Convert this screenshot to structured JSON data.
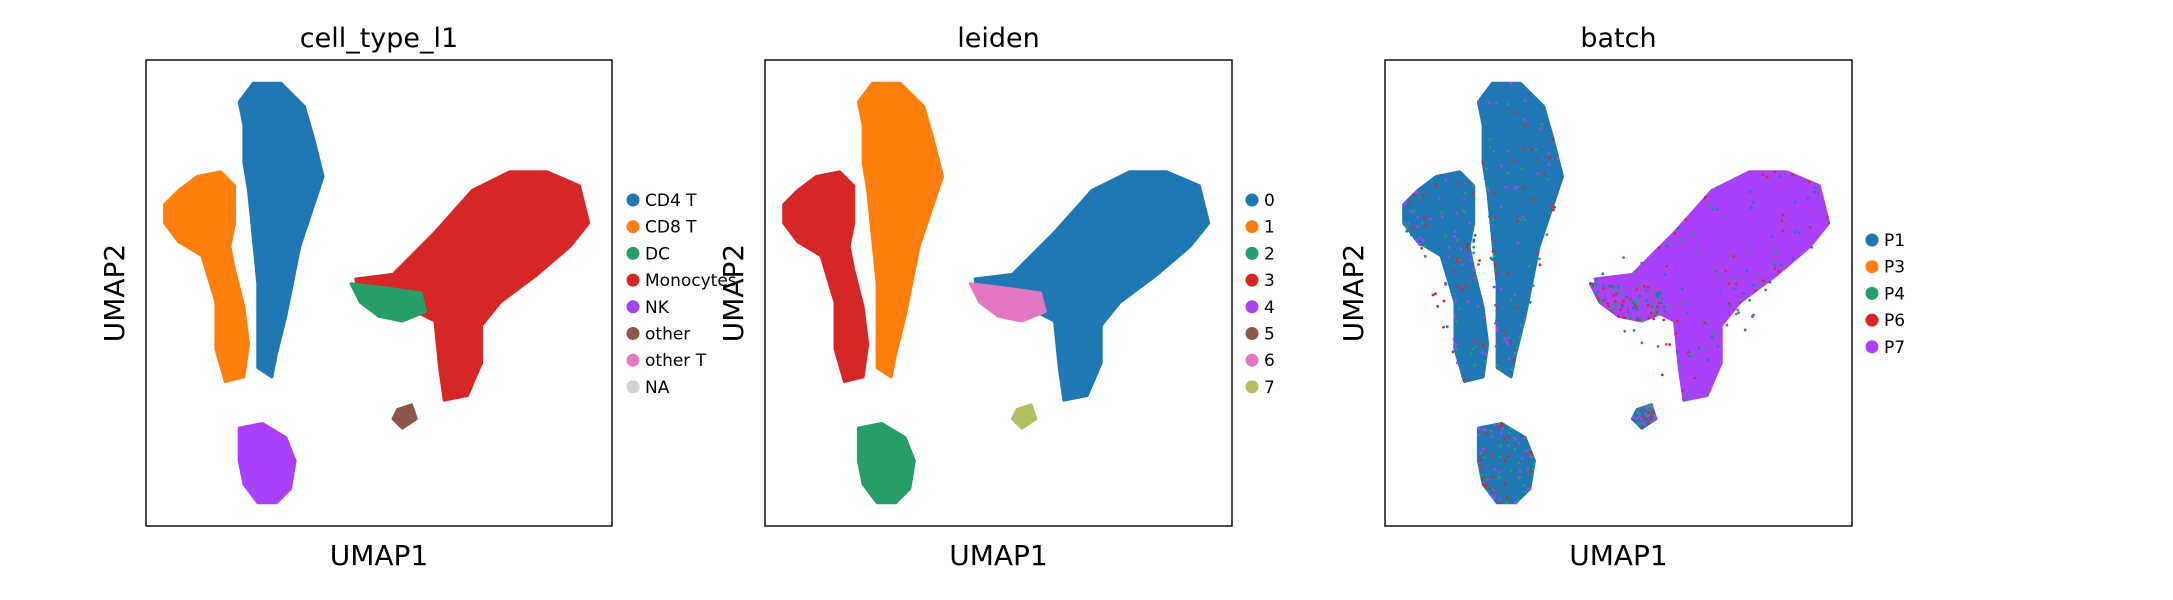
{
  "chart_data": [
    {
      "type": "scatter",
      "title": "cell_type_l1",
      "xlabel": "UMAP1",
      "ylabel": "UMAP2",
      "ticks": "none",
      "legend_position": "right",
      "legend": [
        {
          "label": "CD4 T",
          "color": "#1f77b4"
        },
        {
          "label": "CD8 T",
          "color": "#ff7f0e"
        },
        {
          "label": "DC",
          "color": "#279e68"
        },
        {
          "label": "Monocytes",
          "color": "#d62728"
        },
        {
          "label": "NK",
          "color": "#aa40fc"
        },
        {
          "label": "other",
          "color": "#8c564b"
        },
        {
          "label": "other T",
          "color": "#e377c2"
        },
        {
          "label": "NA",
          "color": "#d3d3d3"
        }
      ]
    },
    {
      "type": "scatter",
      "title": "leiden",
      "xlabel": "UMAP1",
      "ylabel": "UMAP2",
      "ticks": "none",
      "legend_position": "right",
      "legend": [
        {
          "label": "0",
          "color": "#1f77b4"
        },
        {
          "label": "1",
          "color": "#ff7f0e"
        },
        {
          "label": "2",
          "color": "#279e68"
        },
        {
          "label": "3",
          "color": "#d62728"
        },
        {
          "label": "4",
          "color": "#aa40fc"
        },
        {
          "label": "5",
          "color": "#8c564b"
        },
        {
          "label": "6",
          "color": "#e377c2"
        },
        {
          "label": "7",
          "color": "#b5bd61"
        }
      ]
    },
    {
      "type": "scatter",
      "title": "batch",
      "xlabel": "UMAP1",
      "ylabel": "UMAP2",
      "ticks": "none",
      "legend_position": "right",
      "legend": [
        {
          "label": "P1",
          "color": "#1f77b4"
        },
        {
          "label": "P3",
          "color": "#ff7f0e"
        },
        {
          "label": "P4",
          "color": "#279e68"
        },
        {
          "label": "P6",
          "color": "#d62728"
        },
        {
          "label": "P7",
          "color": "#aa40fc"
        }
      ]
    }
  ]
}
